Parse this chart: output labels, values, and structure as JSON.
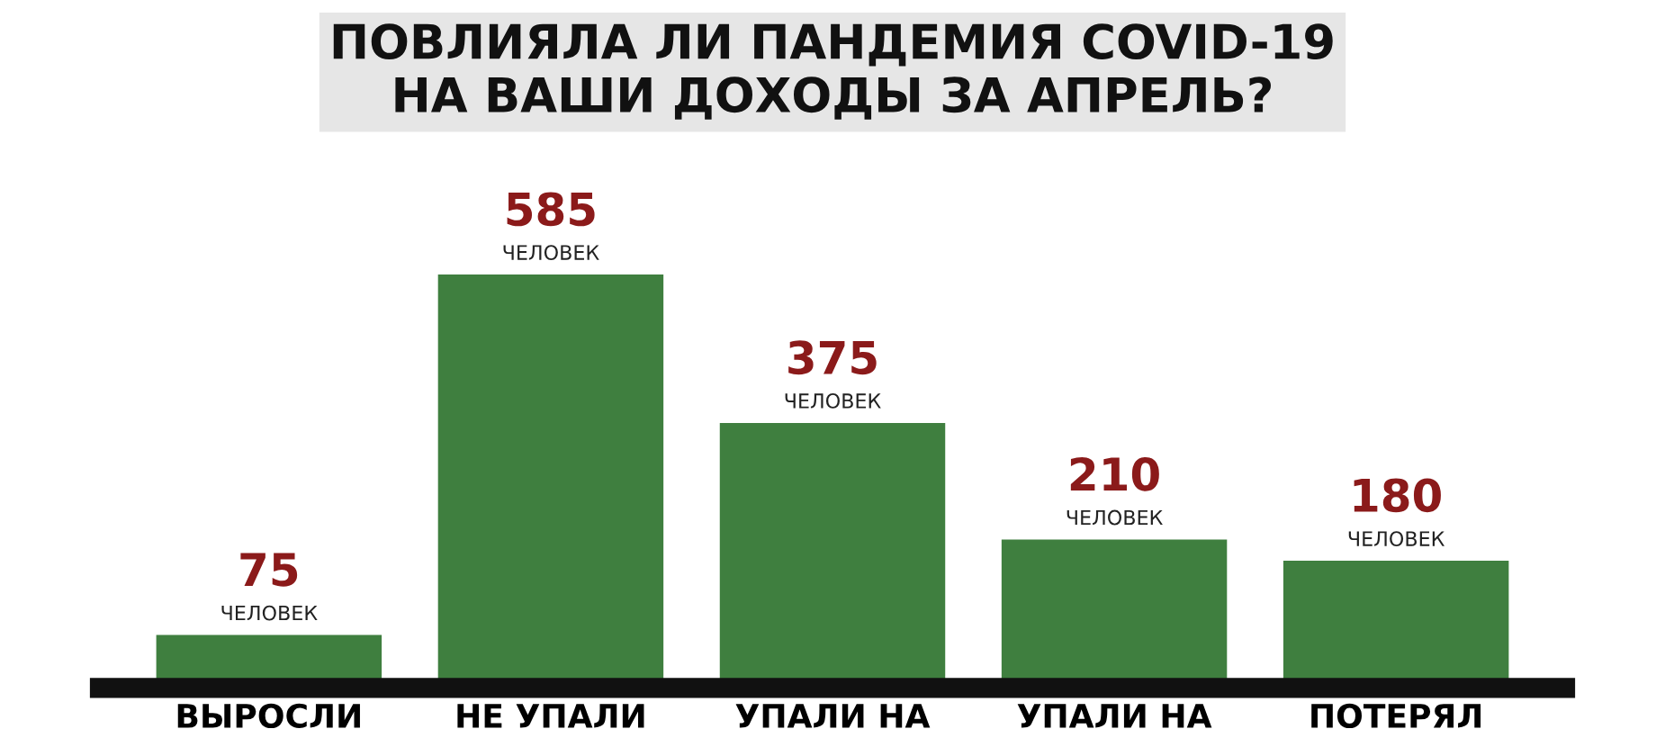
{
  "chart_data": {
    "type": "bar",
    "title": "ПОВЛИЯЛА ЛИ ПАНДЕМИЯ COVID-19\nНА ВАШИ ДОХОДЫ ЗА АПРЕЛЬ?",
    "categories": [
      "ВЫРОСЛИ",
      "НЕ УПАЛИ",
      "УПАЛИ НА",
      "УПАЛИ НА",
      "ПОТЕРЯЛ"
    ],
    "values": [
      75,
      585,
      375,
      210,
      180
    ],
    "color": "#3f7f3f",
    "tick_labels": "x",
    "grid": false,
    "value_labels": [
      "75\nЧЕЛОВЕК",
      "585\nЧЕЛОВЕК",
      "375\nЧЕЛОВЕК",
      "210\nЧЕЛОВЕК",
      "180\nЧЕЛОВЕК"
    ]
  }
}
